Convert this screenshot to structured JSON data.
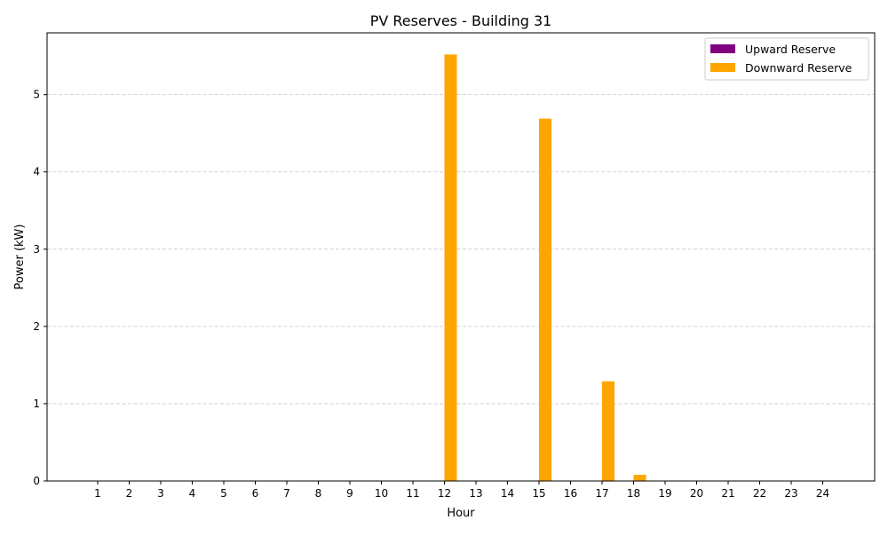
{
  "chart_data": {
    "type": "bar",
    "title": "PV Reserves - Building 31",
    "xlabel": "Hour",
    "ylabel": "Power (kW)",
    "categories": [
      "1",
      "2",
      "3",
      "4",
      "5",
      "6",
      "7",
      "8",
      "9",
      "10",
      "11",
      "12",
      "13",
      "14",
      "15",
      "16",
      "17",
      "18",
      "19",
      "20",
      "21",
      "22",
      "23",
      "24"
    ],
    "series": [
      {
        "name": "Upward Reserve",
        "color": "#800080",
        "values": [
          0,
          0,
          0,
          0,
          0,
          0,
          0,
          0,
          0,
          0,
          0,
          0,
          0,
          0,
          0,
          0,
          0,
          0,
          0,
          0,
          0,
          0,
          0,
          0
        ]
      },
      {
        "name": "Downward Reserve",
        "color": "#ffa500",
        "values": [
          0,
          0,
          0,
          0,
          0,
          0,
          0,
          0,
          0,
          0,
          0,
          5.52,
          0,
          0,
          4.69,
          0,
          1.29,
          0.08,
          0,
          0,
          0,
          0,
          0,
          0
        ]
      }
    ],
    "ylim": [
      0,
      5.8
    ],
    "yticks": [
      "0",
      "1",
      "2",
      "3",
      "4",
      "5"
    ],
    "grid": "horizontal dashed",
    "legend": "top-right"
  }
}
